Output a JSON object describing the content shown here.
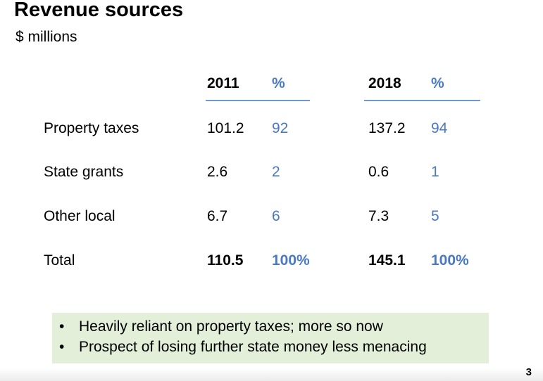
{
  "title": "Revenue sources",
  "subtitle": "$ millions",
  "table": {
    "headers": {
      "year_a": "2011",
      "pct_a": "%",
      "year_b": "2018",
      "pct_b": "%"
    },
    "rows": [
      {
        "label": "Property taxes",
        "val_a": "101.2",
        "pct_a": "92",
        "val_b": "137.2",
        "pct_b": "94"
      },
      {
        "label": "State grants",
        "val_a": "2.6",
        "pct_a": "2",
        "val_b": "0.6",
        "pct_b": "1"
      },
      {
        "label": "Other local",
        "val_a": "6.7",
        "pct_a": "6",
        "val_b": "7.3",
        "pct_b": "5"
      },
      {
        "label": "Total",
        "val_a": "110.5",
        "pct_a": "100%",
        "val_b": "145.1",
        "pct_b": "100%"
      }
    ]
  },
  "notes": [
    "Heavily reliant on property taxes; more so now",
    "Prospect of losing further state money less menacing"
  ],
  "bullet_glyph": "•",
  "page_number": "3",
  "colors": {
    "percent_text": "#4a78c2",
    "header_rule": "#6f98d1",
    "note_background": "#e3efd9"
  }
}
